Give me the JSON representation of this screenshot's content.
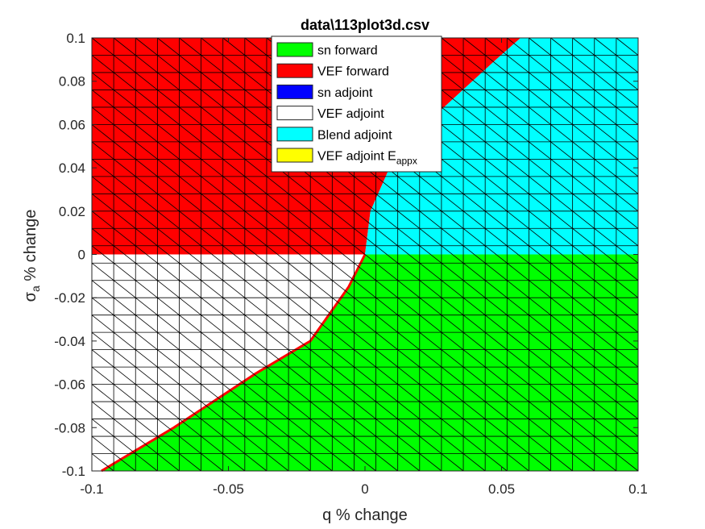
{
  "chart_data": {
    "type": "area",
    "title": "data\\113plot3d.csv",
    "xlabel": "q % change",
    "ylabel_symbol": "σ",
    "ylabel_subscript": "a",
    "ylabel_rest": " % change",
    "xlim": [
      -0.1,
      0.1
    ],
    "ylim": [
      -0.1,
      0.1
    ],
    "xticks": [
      -0.1,
      -0.05,
      0,
      0.05,
      0.1
    ],
    "xtick_labels": [
      "-0.1",
      "-0.05",
      "0",
      "0.05",
      "0.1"
    ],
    "yticks": [
      -0.1,
      -0.08,
      -0.06,
      -0.04,
      -0.02,
      0,
      0.02,
      0.04,
      0.06,
      0.08,
      0.1
    ],
    "ytick_labels": [
      "-0.1",
      "-0.08",
      "-0.06",
      "-0.04",
      "-0.02",
      "0",
      "0.02",
      "0.04",
      "0.06",
      "0.08",
      "0.1"
    ],
    "mesh_cells": 25,
    "grid": true,
    "legend_position": "top-center",
    "series": [
      {
        "name": "sn forward",
        "color": "#00ff00",
        "region": [
          [
            0,
            0
          ],
          [
            0.1,
            0
          ],
          [
            0.1,
            -0.1
          ],
          [
            -0.0965,
            -0.1
          ],
          [
            -0.07,
            -0.08
          ],
          [
            -0.04,
            -0.055
          ],
          [
            -0.02,
            -0.04
          ],
          [
            -0.006,
            -0.015
          ],
          [
            0,
            0
          ]
        ]
      },
      {
        "name": "VEF forward",
        "color": "#ff0000",
        "region": [
          [
            -0.1,
            0.1
          ],
          [
            0.057,
            0.1
          ],
          [
            0.048,
            0.09
          ],
          [
            0.022,
            0.06
          ],
          [
            0.009,
            0.04
          ],
          [
            0.002,
            0.02
          ],
          [
            0,
            0
          ],
          [
            -0.1,
            0
          ]
        ]
      },
      {
        "name": "sn adjoint",
        "color": "#0000ff",
        "region": []
      },
      {
        "name": "VEF adjoint",
        "color": "#ffffff",
        "region": [
          [
            -0.1,
            0
          ],
          [
            0,
            0
          ],
          [
            -0.006,
            -0.015
          ],
          [
            -0.02,
            -0.04
          ],
          [
            -0.04,
            -0.055
          ],
          [
            -0.07,
            -0.08
          ],
          [
            -0.0965,
            -0.1
          ],
          [
            -0.1,
            -0.1
          ]
        ]
      },
      {
        "name": "Blend adjoint",
        "color": "#00ffff",
        "region": [
          [
            0,
            0
          ],
          [
            0.002,
            0.02
          ],
          [
            0.009,
            0.04
          ],
          [
            0.022,
            0.06
          ],
          [
            0.048,
            0.09
          ],
          [
            0.057,
            0.1
          ],
          [
            0.1,
            0.1
          ],
          [
            0.1,
            0
          ]
        ]
      },
      {
        "name": "VEF adjoint E",
        "subscript": "appx",
        "color": "#ffff00",
        "region": []
      }
    ]
  }
}
